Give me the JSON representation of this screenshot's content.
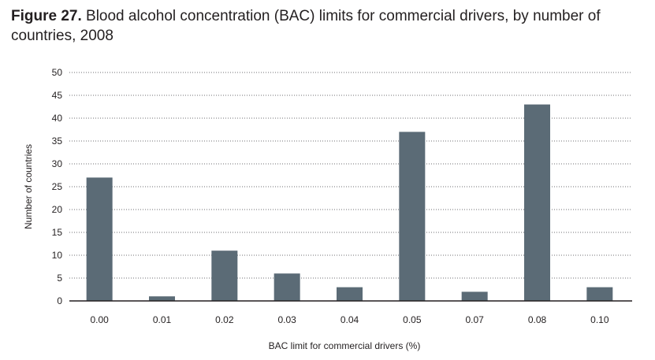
{
  "figure": {
    "label": "Figure 27.",
    "title": "Blood alcohol concentration (BAC) limits for commercial drivers, by number of countries, 2008"
  },
  "chart_data": {
    "type": "bar",
    "title": "Figure 27. Blood alcohol concentration (BAC) limits for commercial drivers, by number of countries, 2008",
    "xlabel": "BAC limit for commercial drivers (%)",
    "ylabel": "Number of countries",
    "categories": [
      "0.00",
      "0.01",
      "0.02",
      "0.03",
      "0.04",
      "0.05",
      "0.07",
      "0.08",
      "0.10"
    ],
    "values": [
      27,
      1,
      11,
      6,
      3,
      37,
      2,
      43,
      3
    ],
    "ylim": [
      0,
      50
    ],
    "yticks": [
      0,
      5,
      10,
      15,
      20,
      25,
      30,
      35,
      40,
      45,
      50
    ],
    "grid": "horizontal dotted",
    "legend": "none",
    "bar_color": "#5b6b76"
  }
}
